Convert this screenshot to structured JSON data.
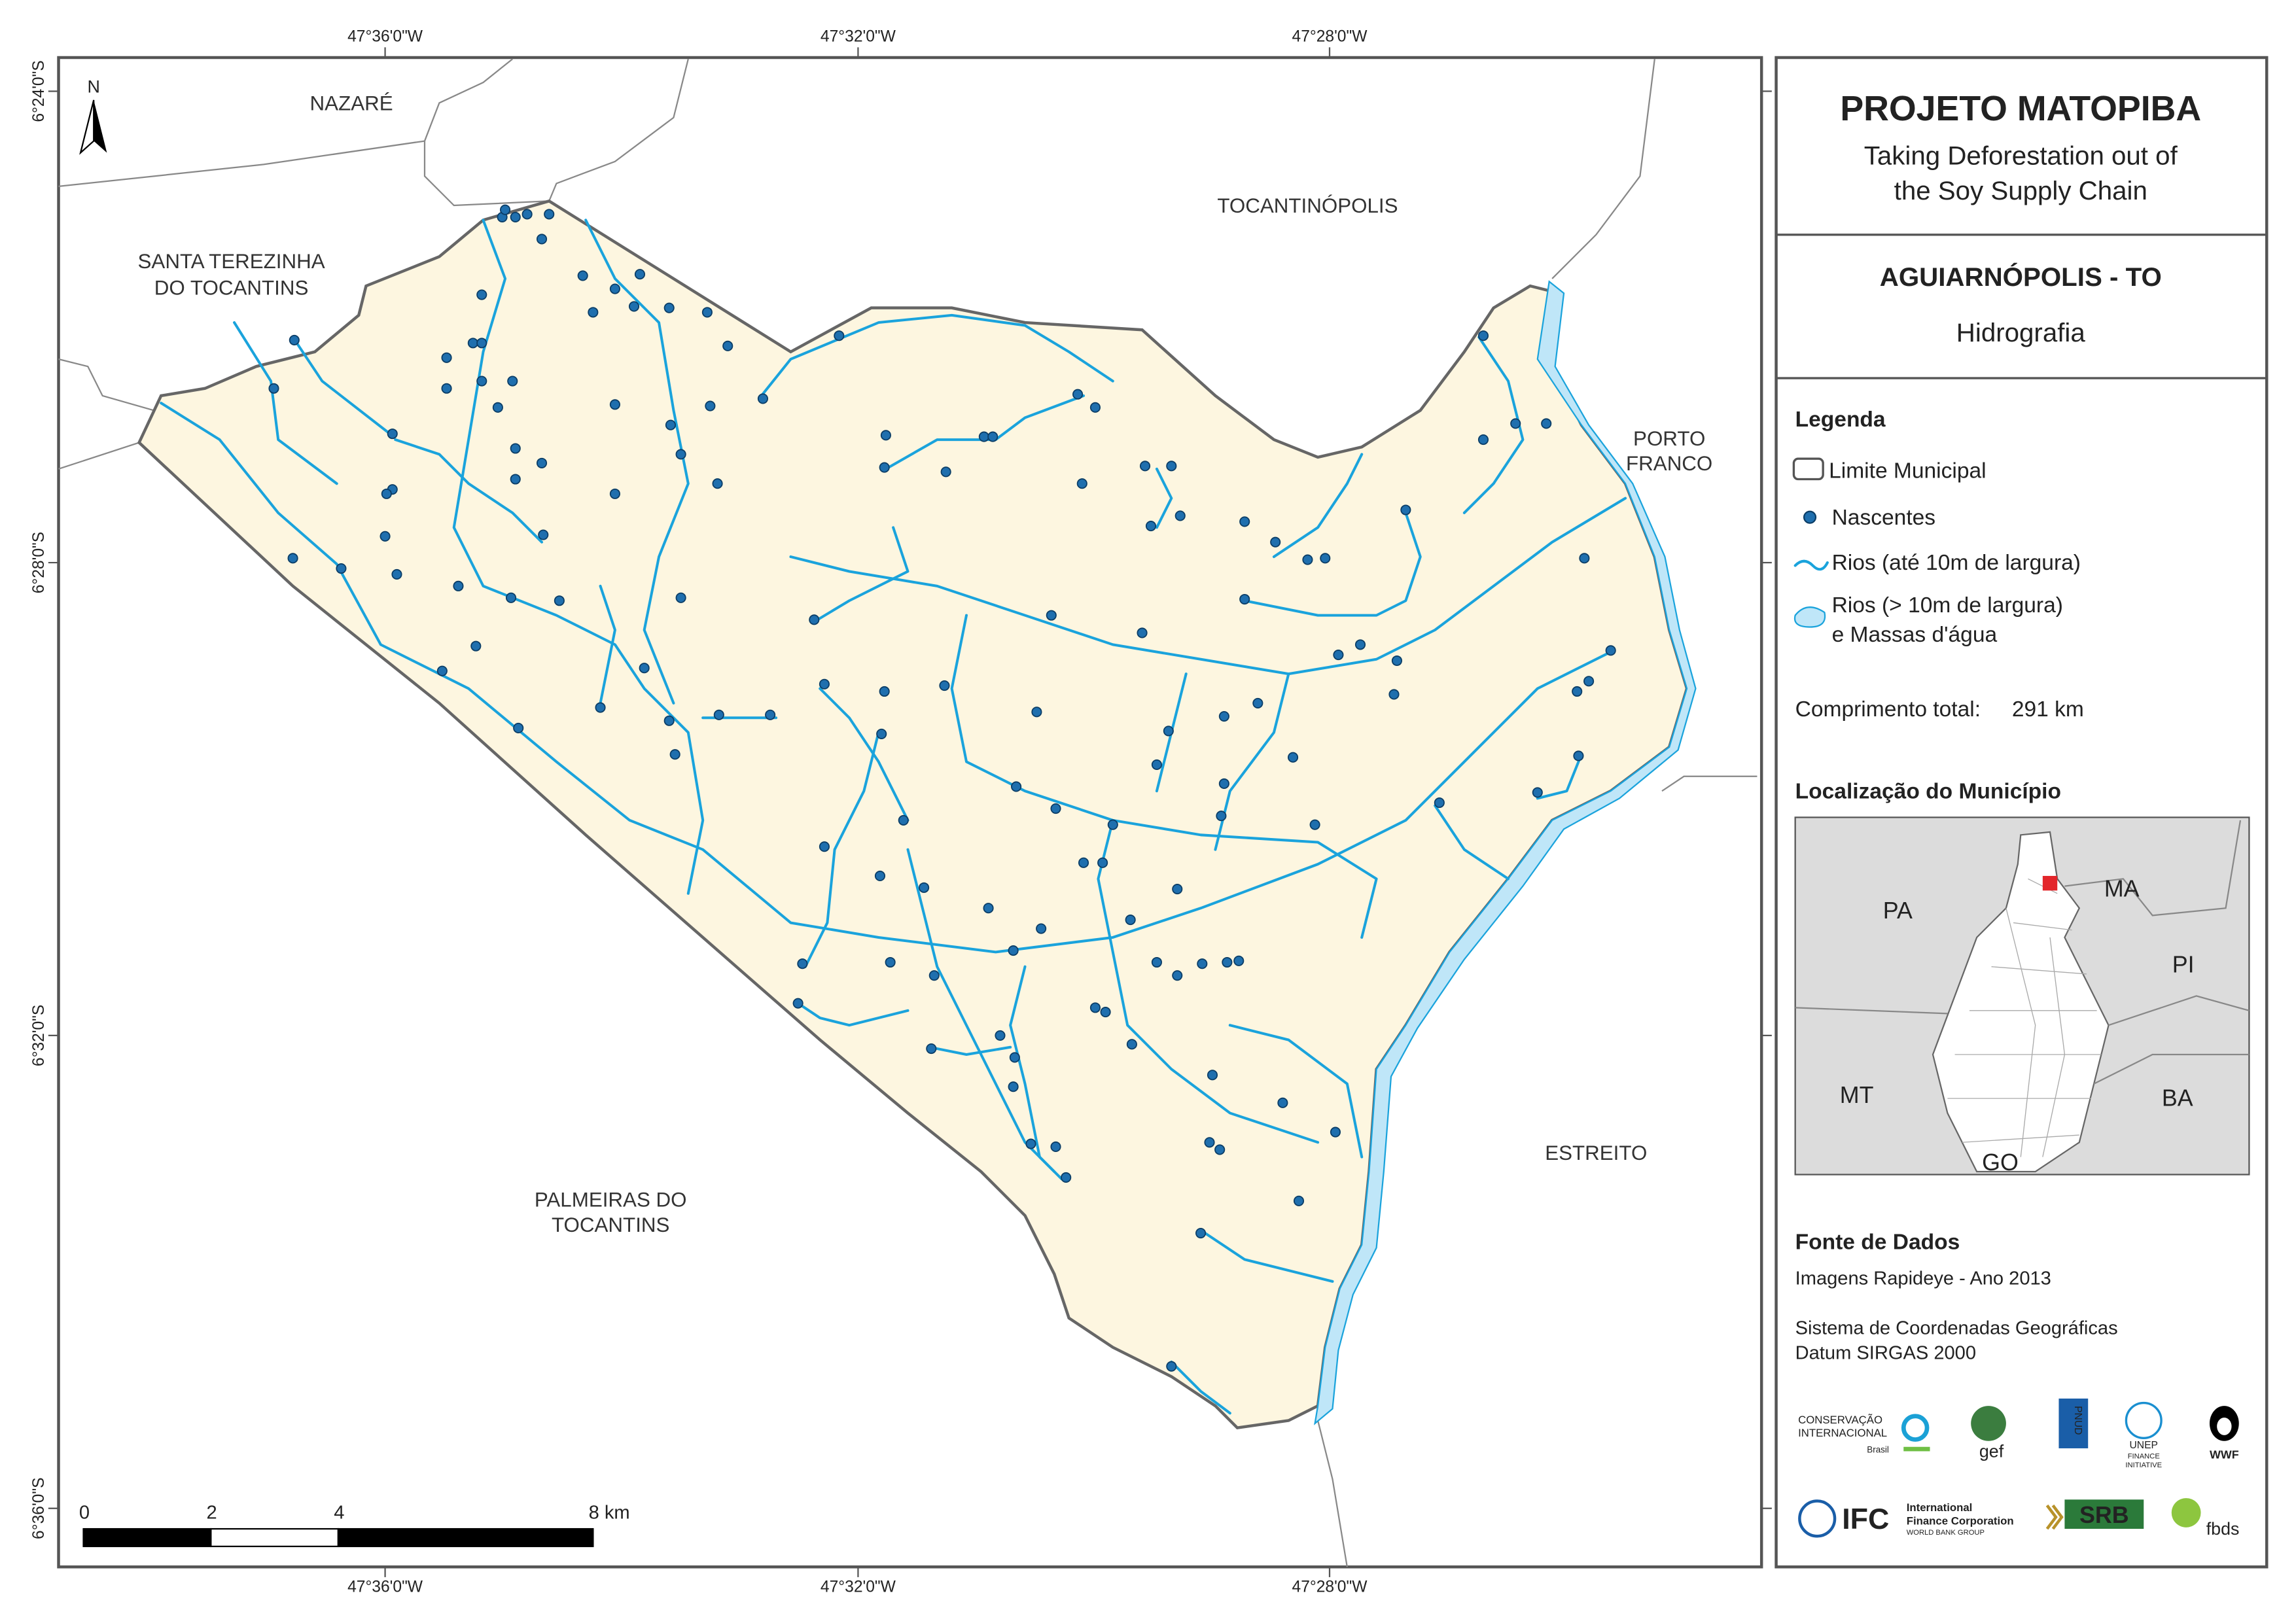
{
  "header": {
    "title": "PROJETO MATOPIBA",
    "subtitle": [
      "Taking Deforestation out of",
      "the Soy Supply Chain"
    ]
  },
  "municipality": "AGUIARNÓPOLIS - TO",
  "theme": "Hidrografia",
  "legend": {
    "title": "Legenda",
    "items": [
      "Limite Municipal",
      "Nascentes",
      "Rios (até 10m de largura)",
      [
        "Rios (> 10m de largura)",
        "e Massas d'água"
      ]
    ]
  },
  "total_length": {
    "label": "Comprimento total:",
    "value": "291 km"
  },
  "location": {
    "title": "Localização do Município",
    "labels": [
      "PA",
      "MA",
      "PI",
      "MT",
      "BA",
      "GO"
    ]
  },
  "sources": {
    "title": "Fonte de Dados",
    "lines": [
      "Imagens Rapideye - Ano 2013",
      "Sistema de Coordenadas Geográficas",
      "Datum SIRGAS 2000"
    ]
  },
  "map": {
    "places": [
      [
        "NAZARÉ"
      ],
      [
        "TOCANTINÓPOLIS"
      ],
      [
        "SANTA TEREZINHA",
        "DO TOCANTINS"
      ],
      [
        "PORTO",
        "FRANCO"
      ],
      [
        "ESTREITO"
      ],
      [
        "PALMEIRAS DO",
        "TOCANTINS"
      ]
    ],
    "north": "N",
    "longitudes": [
      "47°36'0\"W",
      "47°32'0\"W",
      "47°28'0\"W"
    ],
    "latitudes": [
      "6°24'0\"S",
      "6°28'0\"S",
      "6°32'0\"S",
      "6°36'0\"S"
    ],
    "scale": {
      "ticks": [
        0,
        2,
        4,
        {
          "value": 8,
          "label": "8 km"
        }
      ]
    }
  },
  "logos": {
    "ci": [
      "CONSERVAÇÃO",
      "INTERNACIONAL",
      "Brasil"
    ],
    "gef": "gef",
    "pnud": "PNUD",
    "unep": [
      "UNEP",
      "FINANCE",
      "INITIATIVE"
    ],
    "wwf": "WWF",
    "ifc": [
      "IFC",
      "International",
      "Finance Corporation",
      "WORLD BANK GROUP"
    ],
    "srb": "SRB",
    "fbds": "fbds"
  }
}
